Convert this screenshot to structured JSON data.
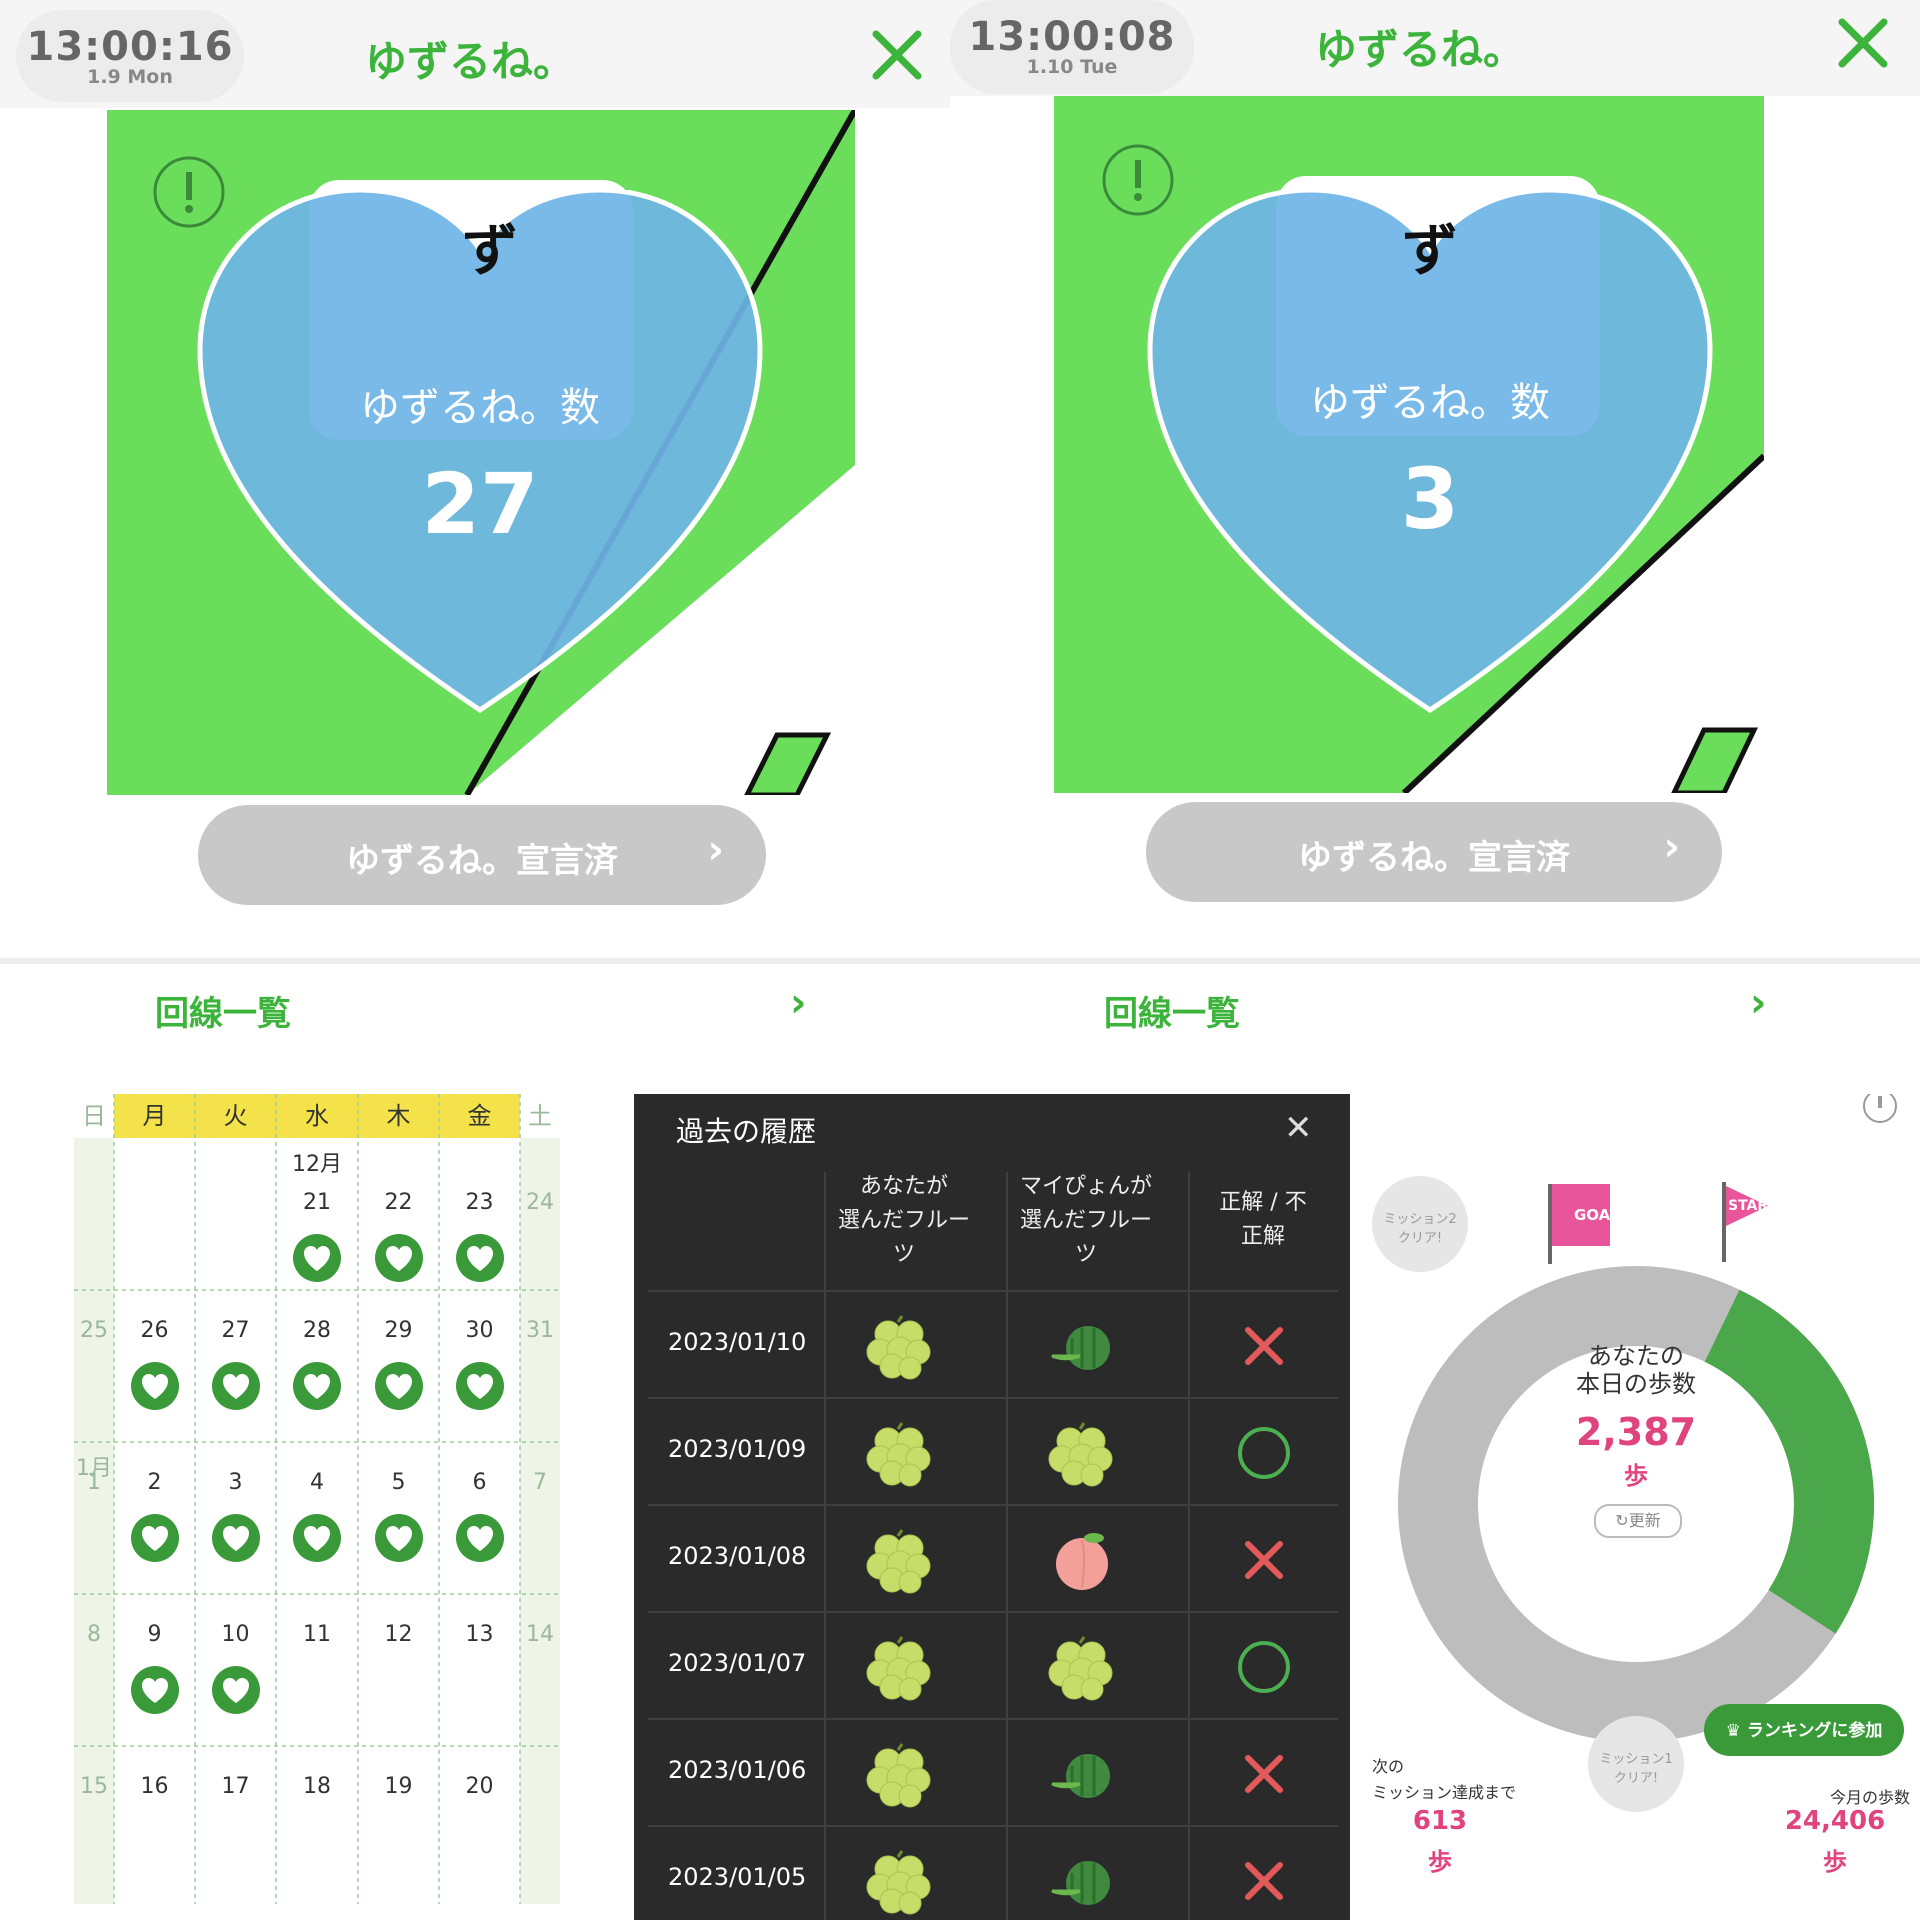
{
  "panels": [
    {
      "time": "13:00:16",
      "date": "1.9 Mon",
      "app_title": "ゆずるね。",
      "heart_label": "ゆずるね。数",
      "count": "27",
      "declared_label": "ゆずるね。宣言済",
      "lines_label": "回線一覧"
    },
    {
      "time": "13:00:08",
      "date": "1.10 Tue",
      "app_title": "ゆずるね。",
      "heart_label": "ゆずるね。数",
      "count": "3",
      "declared_label": "ゆずるね。宣言済",
      "lines_label": "回線一覧"
    }
  ],
  "calendar": {
    "weekdays": [
      "日",
      "月",
      "火",
      "水",
      "木",
      "金",
      "土"
    ],
    "month_labels": {
      "dec": "12月",
      "jan": "1月"
    },
    "weeks": [
      [
        "",
        "",
        "",
        "21",
        "22",
        "23",
        "24"
      ],
      [
        "25",
        "26",
        "27",
        "28",
        "29",
        "30",
        "31"
      ],
      [
        "1",
        "2",
        "3",
        "4",
        "5",
        "6",
        "7"
      ],
      [
        "8",
        "9",
        "10",
        "11",
        "12",
        "13",
        "14"
      ],
      [
        "15",
        "16",
        "17",
        "18",
        "19",
        "20",
        ""
      ]
    ],
    "stamped": [
      [
        false,
        false,
        false,
        true,
        true,
        true,
        false
      ],
      [
        false,
        true,
        true,
        true,
        true,
        true,
        false
      ],
      [
        false,
        true,
        true,
        true,
        true,
        true,
        false
      ],
      [
        false,
        true,
        true,
        false,
        false,
        false,
        false
      ],
      [
        false,
        false,
        false,
        false,
        false,
        false,
        false
      ]
    ]
  },
  "history": {
    "title": "過去の履歴",
    "columns": [
      "あなたが\n選んだフルー\nツ",
      "マイぴょんが\n選んだフルー\nツ",
      "正解 / 不\n正解"
    ],
    "rows": [
      {
        "date": "2023/01/10",
        "yours": "grape",
        "mine": "watermelon",
        "result": "wrong"
      },
      {
        "date": "2023/01/09",
        "yours": "grape",
        "mine": "grape",
        "result": "correct"
      },
      {
        "date": "2023/01/08",
        "yours": "grape",
        "mine": "peach",
        "result": "wrong"
      },
      {
        "date": "2023/01/07",
        "yours": "grape",
        "mine": "grape",
        "result": "correct"
      },
      {
        "date": "2023/01/06",
        "yours": "grape",
        "mine": "watermelon",
        "result": "wrong"
      },
      {
        "date": "2023/01/05",
        "yours": "grape",
        "mine": "watermelon",
        "result": "wrong"
      }
    ]
  },
  "steps": {
    "goal": "GOAL",
    "start": "START",
    "mission2": "ミッション2\nクリア!",
    "mission1": "ミッション1\nクリア!",
    "today_title": "あなたの\n本日の歩数",
    "today_steps": "2,387",
    "unit": "歩",
    "refresh": "更新",
    "ranking": "ランキングに参加",
    "next_label": "次の\nミッション達成まで",
    "next_steps": "613",
    "month_label": "今月の歩数",
    "month_steps": "24,406",
    "progress_fraction": 0.3
  }
}
